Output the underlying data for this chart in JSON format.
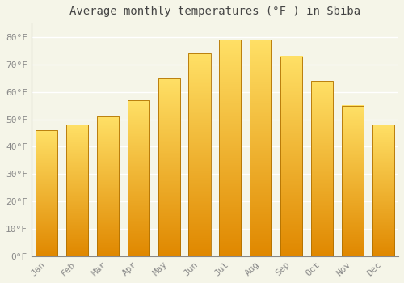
{
  "title": "Average monthly temperatures (°F ) in Sbiba",
  "months": [
    "Jan",
    "Feb",
    "Mar",
    "Apr",
    "May",
    "Jun",
    "Jul",
    "Aug",
    "Sep",
    "Oct",
    "Nov",
    "Dec"
  ],
  "values": [
    46,
    48,
    51,
    57,
    65,
    74,
    79,
    79,
    73,
    64,
    55,
    48
  ],
  "bar_color_top": "#FFE066",
  "bar_color_mid": "#FDB827",
  "bar_color_bottom": "#E08800",
  "bar_edge_color": "#B07000",
  "background_color": "#F5F5E8",
  "grid_color": "#FFFFFF",
  "ylim": [
    0,
    85
  ],
  "yticks": [
    0,
    10,
    20,
    30,
    40,
    50,
    60,
    70,
    80
  ],
  "ytick_labels": [
    "0°F",
    "10°F",
    "20°F",
    "30°F",
    "40°F",
    "50°F",
    "60°F",
    "70°F",
    "80°F"
  ],
  "tick_color": "#888888",
  "title_fontsize": 10,
  "tick_fontsize": 8,
  "font_family": "monospace",
  "title_color": "#444444"
}
